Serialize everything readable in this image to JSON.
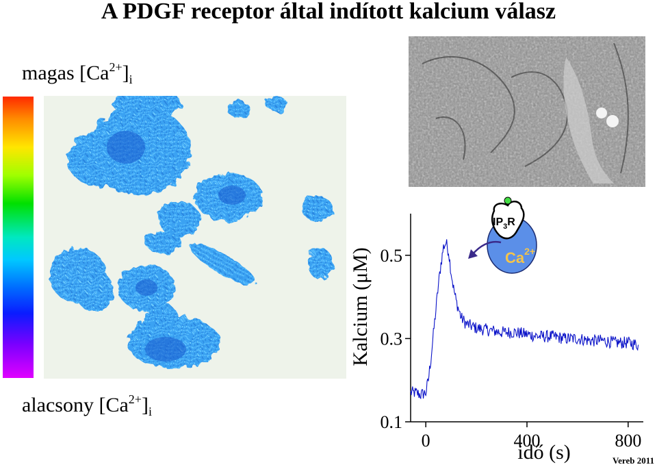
{
  "title": "A PDGF receptor által indított kalcium válasz",
  "legend_high": {
    "prefix": "magas [Ca",
    "sup": "2+",
    "close": "]",
    "sub": "i"
  },
  "legend_low": {
    "prefix": "alacsony [Ca",
    "sup": "2+",
    "close": "]",
    "sub": "i"
  },
  "credit": "Vereb 2011",
  "colors": {
    "trace": "#0a12c8",
    "cell_fill": "#3aa0f0",
    "cell_dark": "#1050c8",
    "ca_store": "#5b8fe8",
    "agonist_dot": "#44dd44"
  },
  "schematic": {
    "receptor_label": "IP",
    "receptor_sub": "3",
    "receptor_suffix": "R",
    "ion_label": "Ca",
    "ion_sup": "2+"
  },
  "chart_data": {
    "type": "line",
    "xlabel": "idő (s)",
    "ylabel": "Kalcium (μM)",
    "xlim": [
      -60,
      860
    ],
    "ylim": [
      0.1,
      0.6
    ],
    "xticks": [
      0,
      400,
      800
    ],
    "xtick_labels": [
      "0",
      "400",
      "800"
    ],
    "yticks": [
      0.1,
      0.3,
      0.5
    ],
    "ytick_labels": [
      "0.1",
      "0.3",
      "0.5"
    ],
    "series": [
      {
        "x": [
          -60,
          -40,
          -20,
          0,
          10,
          20,
          30,
          40,
          50,
          60,
          70,
          80,
          90,
          100,
          110,
          120,
          130,
          140,
          160,
          180,
          200,
          250,
          300,
          350,
          400,
          450,
          500,
          550,
          600,
          650,
          700,
          750,
          800,
          840
        ],
        "y": [
          0.17,
          0.17,
          0.165,
          0.17,
          0.2,
          0.25,
          0.31,
          0.37,
          0.43,
          0.48,
          0.52,
          0.53,
          0.51,
          0.46,
          0.42,
          0.39,
          0.37,
          0.35,
          0.335,
          0.33,
          0.325,
          0.32,
          0.315,
          0.315,
          0.31,
          0.305,
          0.305,
          0.3,
          0.3,
          0.295,
          0.295,
          0.29,
          0.29,
          0.285
        ]
      }
    ]
  }
}
